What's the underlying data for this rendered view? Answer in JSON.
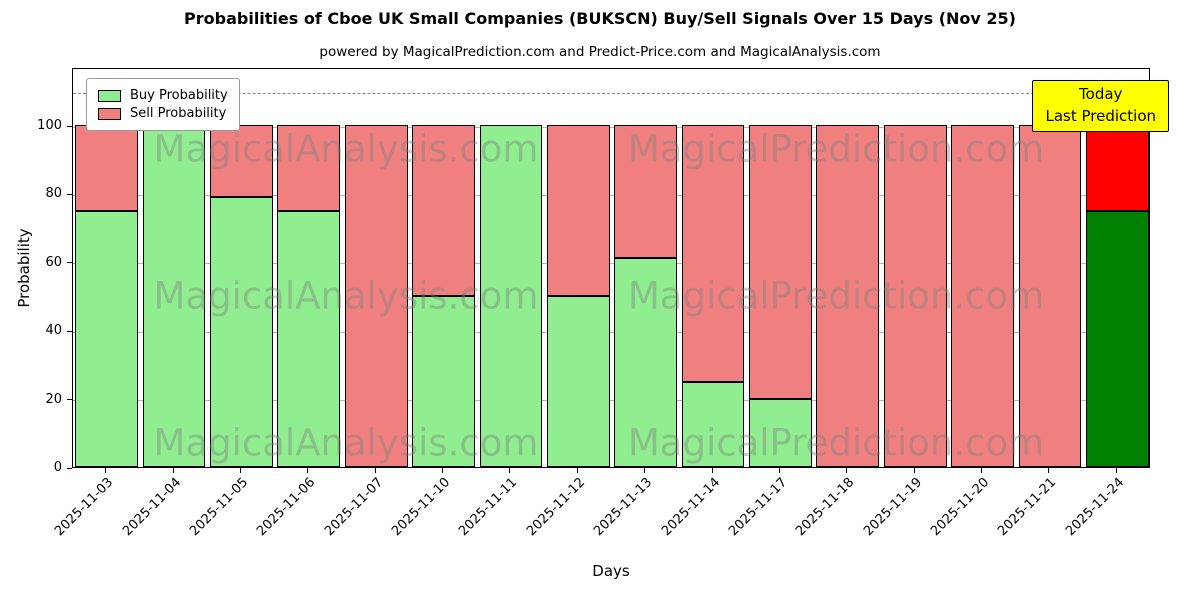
{
  "chart_data": {
    "type": "bar",
    "stacked": true,
    "title": "Probabilities of Cboe UK Small Companies (BUKSCN) Buy/Sell Signals Over 15 Days (Nov 25)",
    "subtitle": "powered by MagicalPrediction.com and Predict-Price.com and MagicalAnalysis.com",
    "xlabel": "Days",
    "ylabel": "Probability",
    "ylim": [
      0,
      117
    ],
    "yticks": [
      0,
      20,
      40,
      60,
      80,
      100
    ],
    "dashed_line_y": 110,
    "grid": "horizontal",
    "legend_position": "upper-left",
    "categories": [
      "2025-11-03",
      "2025-11-04",
      "2025-11-05",
      "2025-11-06",
      "2025-11-07",
      "2025-11-10",
      "2025-11-11",
      "2025-11-12",
      "2025-11-13",
      "2025-11-14",
      "2025-11-17",
      "2025-11-18",
      "2025-11-19",
      "2025-11-20",
      "2025-11-21",
      "2025-11-24"
    ],
    "series": [
      {
        "name": "Buy Probability",
        "color": "#90ee90",
        "values": [
          75,
          100,
          79,
          75,
          0,
          50,
          100,
          50,
          61,
          25,
          20,
          0,
          0,
          0,
          0,
          75
        ]
      },
      {
        "name": "Sell Probability",
        "color": "#f08080",
        "values": [
          25,
          0,
          21,
          25,
          100,
          50,
          0,
          50,
          39,
          75,
          80,
          100,
          100,
          100,
          100,
          25
        ]
      }
    ],
    "highlight_index": 15,
    "highlight_colors": {
      "buy": "#008000",
      "sell": "#ff0000"
    }
  },
  "annotation": {
    "line1": "Today",
    "line2": "Last Prediction",
    "bg_color": "#ffff00"
  },
  "watermarks": {
    "left_text": "MagicalAnalysis.com",
    "right_text": "MagicalPrediction.com",
    "color": "#808080"
  }
}
